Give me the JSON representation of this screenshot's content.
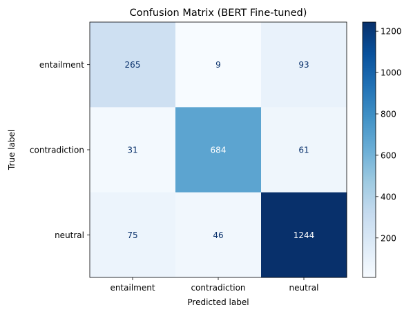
{
  "chart_data": {
    "type": "heatmap",
    "title": "Confusion Matrix (BERT Fine-tuned)",
    "xlabel": "Predicted label",
    "ylabel": "True label",
    "x_categories": [
      "entailment",
      "contradiction",
      "neutral"
    ],
    "y_categories": [
      "entailment",
      "contradiction",
      "neutral"
    ],
    "values": [
      [
        265,
        9,
        93
      ],
      [
        31,
        684,
        61
      ],
      [
        75,
        46,
        1244
      ]
    ],
    "colormap": "Blues",
    "colorbar": {
      "range": [
        9,
        1244
      ],
      "ticks": [
        200,
        400,
        600,
        800,
        1000,
        1200
      ]
    }
  }
}
